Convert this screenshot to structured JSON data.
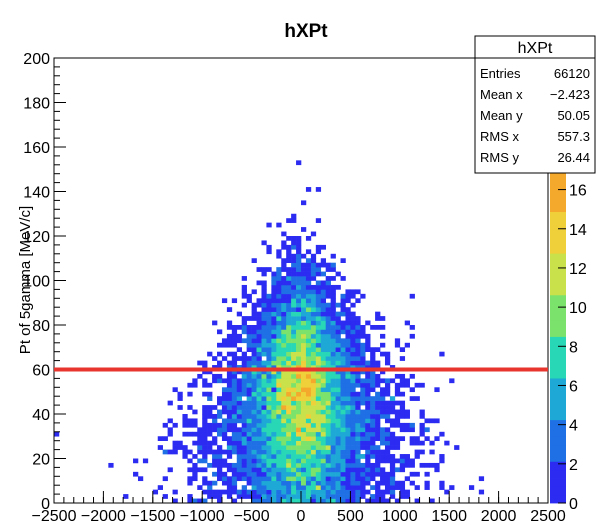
{
  "chart_data": {
    "type": "heatmap",
    "title": "hXPt",
    "xlabel": "",
    "ylabel": "Pt of 5gamma [MeV/c]",
    "xlim": [
      -2500,
      2500
    ],
    "ylim": [
      0,
      200
    ],
    "x_ticks": [
      "-2500",
      "-2000",
      "-1500",
      "-1000",
      "-500",
      "0",
      "500",
      "1000",
      "1500",
      "2000",
      "2500"
    ],
    "y_ticks": [
      "0",
      "20",
      "40",
      "60",
      "80",
      "100",
      "120",
      "140",
      "160",
      "180",
      "200"
    ],
    "color_scale_ticks": [
      "0",
      "2",
      "4",
      "6",
      "8",
      "10",
      "12",
      "14",
      "16"
    ],
    "color_scale_max": 17,
    "distribution": {
      "x_center": 0,
      "core_rms_x": 220,
      "spread_at_y0": 1050,
      "spread_slope_per_unit_y": -6.5,
      "y_peak": 45,
      "y_rms": 26.44
    },
    "horizontal_line": {
      "y": 60,
      "color": "#e8362e"
    },
    "colors": {
      "palette": [
        "#2b2bf2",
        "#1f6fe5",
        "#1ea8d6",
        "#28d7b5",
        "#7be36b",
        "#c9e14a",
        "#f0d03a",
        "#f4a82c"
      ]
    },
    "stats": {
      "title": "hXPt",
      "rows": [
        {
          "label": "Entries",
          "value": "66120"
        },
        {
          "label": "Mean x",
          "value": "−2.423"
        },
        {
          "label": "Mean y",
          "value": "50.05"
        },
        {
          "label": "RMS x",
          "value": "557.3"
        },
        {
          "label": "RMS y",
          "value": "26.44"
        }
      ]
    }
  }
}
